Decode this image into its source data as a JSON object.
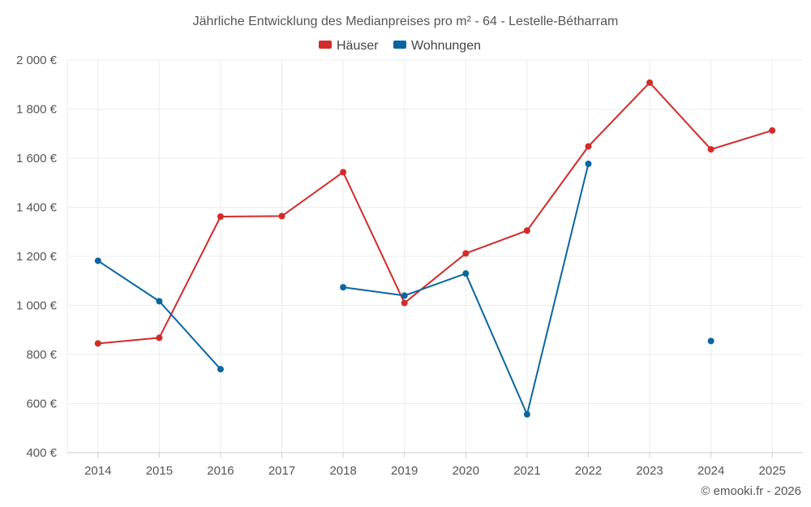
{
  "chart_data": {
    "type": "line",
    "title": "Jährliche Entwicklung des Medianpreises pro m² - 64 - Lestelle-Bétharram",
    "categories": [
      "2014",
      "2015",
      "2016",
      "2017",
      "2018",
      "2019",
      "2020",
      "2021",
      "2022",
      "2023",
      "2024",
      "2025"
    ],
    "ylim": [
      400,
      2000
    ],
    "yticks": [
      400,
      600,
      800,
      1000,
      1200,
      1400,
      1600,
      1800,
      2000
    ],
    "ytick_labels": [
      "400 €",
      "600 €",
      "800 €",
      "1 000 €",
      "1 200 €",
      "1 400 €",
      "1 600 €",
      "1 800 €",
      "2 000 €"
    ],
    "grid": true,
    "legend_position": "top-center",
    "series": [
      {
        "name": "Häuser",
        "color": "#d32a2a",
        "values": [
          845,
          868,
          1362,
          1364,
          1543,
          1010,
          1212,
          1305,
          1648,
          1908,
          1636,
          1713
        ]
      },
      {
        "name": "Wohnungen",
        "color": "#0a66a0",
        "values": [
          1182,
          1017,
          740,
          null,
          1074,
          1040,
          1130,
          556,
          1577,
          null,
          855,
          null
        ]
      }
    ]
  },
  "credit": "© emooki.fr - 2026"
}
